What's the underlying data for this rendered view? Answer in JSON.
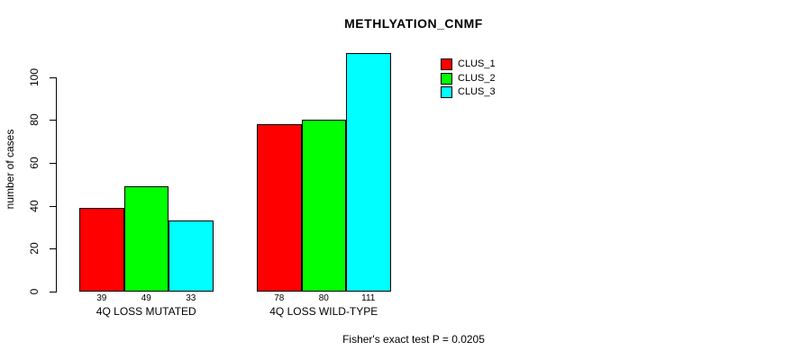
{
  "window": {
    "background": "#ffffff",
    "foreground": "#000000"
  },
  "chart_data": {
    "type": "bar",
    "title": "METHLYATION_CNMF",
    "xlabel": "",
    "ylabel": "number of cases",
    "categories": [
      "4Q LOSS MUTATED",
      "4Q LOSS WILD-TYPE"
    ],
    "series": [
      {
        "name": "CLUS_1",
        "color": "#ff0000",
        "values": [
          39,
          78
        ]
      },
      {
        "name": "CLUS_2",
        "color": "#00ff00",
        "values": [
          49,
          80
        ]
      },
      {
        "name": "CLUS_3",
        "color": "#00ffff",
        "values": [
          33,
          111
        ]
      }
    ],
    "bar_value_labels": [
      [
        39,
        49,
        33
      ],
      [
        78,
        80,
        111
      ]
    ],
    "y_ticks": [
      0,
      20,
      40,
      60,
      80,
      100
    ],
    "ylim": [
      0,
      111
    ],
    "grid": false,
    "legend_position": "top-right-inside",
    "annotation": "Fisher's exact test P = 0.0205"
  },
  "legend": {
    "items": [
      {
        "label": "CLUS_1",
        "color": "#ff0000"
      },
      {
        "label": "CLUS_2",
        "color": "#00ff00"
      },
      {
        "label": "CLUS_3",
        "color": "#00ffff"
      }
    ]
  },
  "footer": {
    "text": "Fisher's exact test P = 0.0205"
  }
}
